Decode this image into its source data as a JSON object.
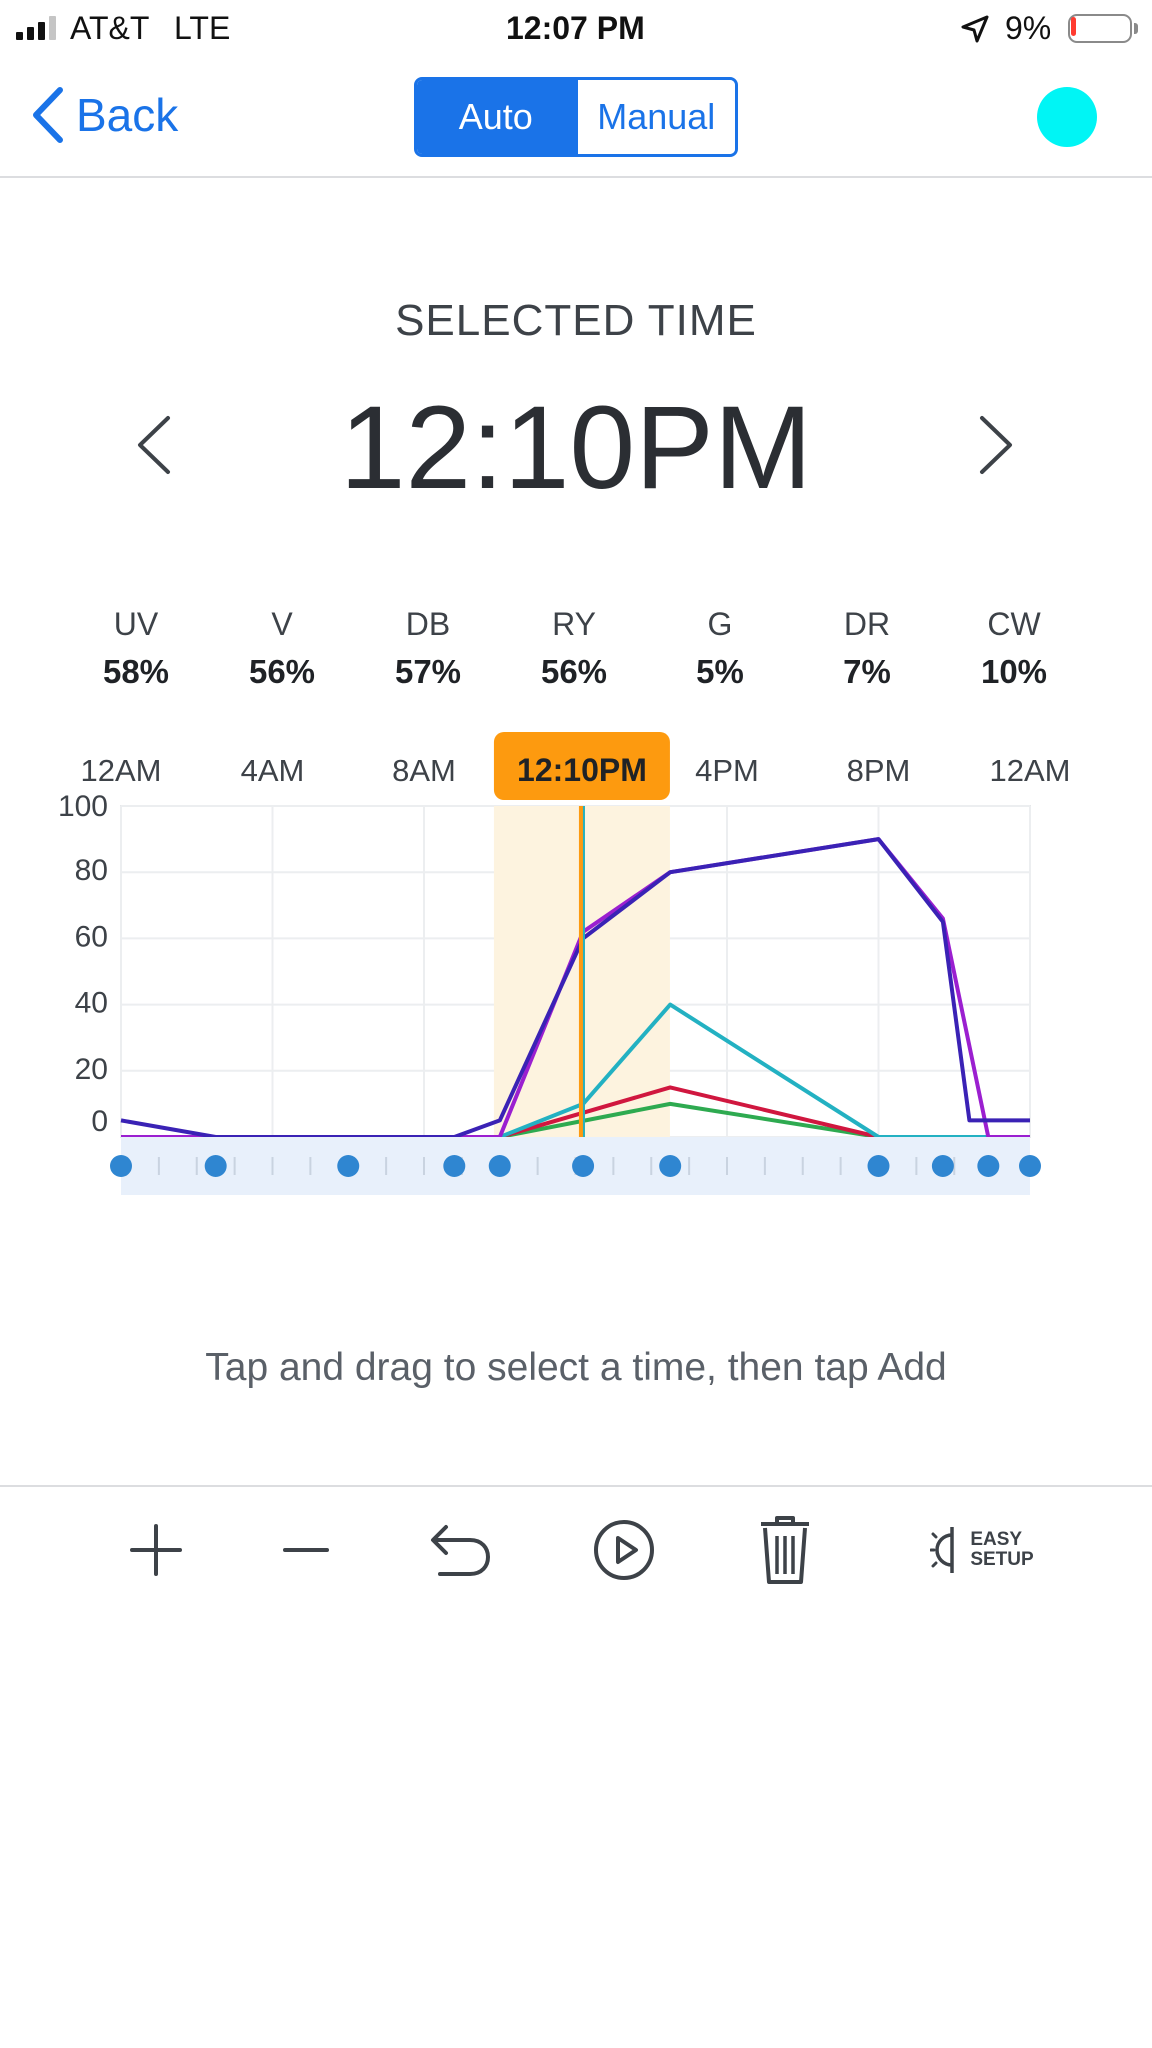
{
  "status_bar": {
    "carrier": "AT&T",
    "network": "LTE",
    "time": "12:07 PM",
    "battery": "9%",
    "battery_level": 0.09
  },
  "nav": {
    "back_label": "Back",
    "modes": [
      "Auto",
      "Manual"
    ],
    "active_mode": "Auto",
    "device_color": "#00f5f5"
  },
  "selected_time": {
    "label": "SELECTED TIME",
    "value": "12:10PM"
  },
  "channels": [
    {
      "name": "UV",
      "value": "58%"
    },
    {
      "name": "V",
      "value": "56%"
    },
    {
      "name": "DB",
      "value": "57%"
    },
    {
      "name": "RY",
      "value": "56%"
    },
    {
      "name": "G",
      "value": "5%"
    },
    {
      "name": "DR",
      "value": "7%"
    },
    {
      "name": "CW",
      "value": "10%"
    }
  ],
  "chart_data": {
    "type": "line",
    "x_ticks": [
      "12AM",
      "4AM",
      "8AM",
      "12:10PM",
      "4PM",
      "8PM",
      "12AM"
    ],
    "selected_label": "12:10PM",
    "selected_hour": 12.17,
    "xlim": [
      0,
      24
    ],
    "ylim": [
      0,
      100
    ],
    "y_ticks": [
      "0",
      "20",
      "40",
      "60",
      "80",
      "100"
    ],
    "grid": true,
    "series": [
      {
        "color": "#3a22b5",
        "x": [
          0,
          2.5,
          8.8,
          10,
          12.2,
          14.5,
          20,
          21.7,
          22.4,
          23.3,
          24
        ],
        "y": [
          5,
          0,
          0,
          5,
          60,
          80,
          90,
          65,
          5,
          5,
          5
        ]
      },
      {
        "color": "#9b1fd0",
        "x": [
          0,
          10,
          12.2,
          14.5,
          20,
          21.7,
          22.9,
          24
        ],
        "y": [
          0,
          0,
          62,
          80,
          90,
          66,
          0,
          0
        ]
      },
      {
        "color": "#23b1c2",
        "x": [
          0,
          10,
          12.2,
          14.5,
          20,
          24
        ],
        "y": [
          0,
          0,
          10,
          40,
          0,
          0
        ]
      },
      {
        "color": "#d0173f",
        "x": [
          0,
          10,
          14.5,
          20,
          24
        ],
        "y": [
          0,
          0,
          15,
          0,
          0
        ]
      },
      {
        "color": "#2eaa50",
        "x": [
          0,
          10,
          14.5,
          20,
          24
        ],
        "y": [
          0,
          0,
          10,
          0,
          0
        ]
      }
    ],
    "keyframes": [
      0,
      2.5,
      6,
      8.8,
      10,
      12.2,
      14.5,
      20,
      21.7,
      22.9,
      24
    ]
  },
  "hint": "Tap and drag to select a time, then tap Add",
  "toolbar": {
    "easy_setup_line1": "EASY",
    "easy_setup_line2": "SETUP"
  }
}
